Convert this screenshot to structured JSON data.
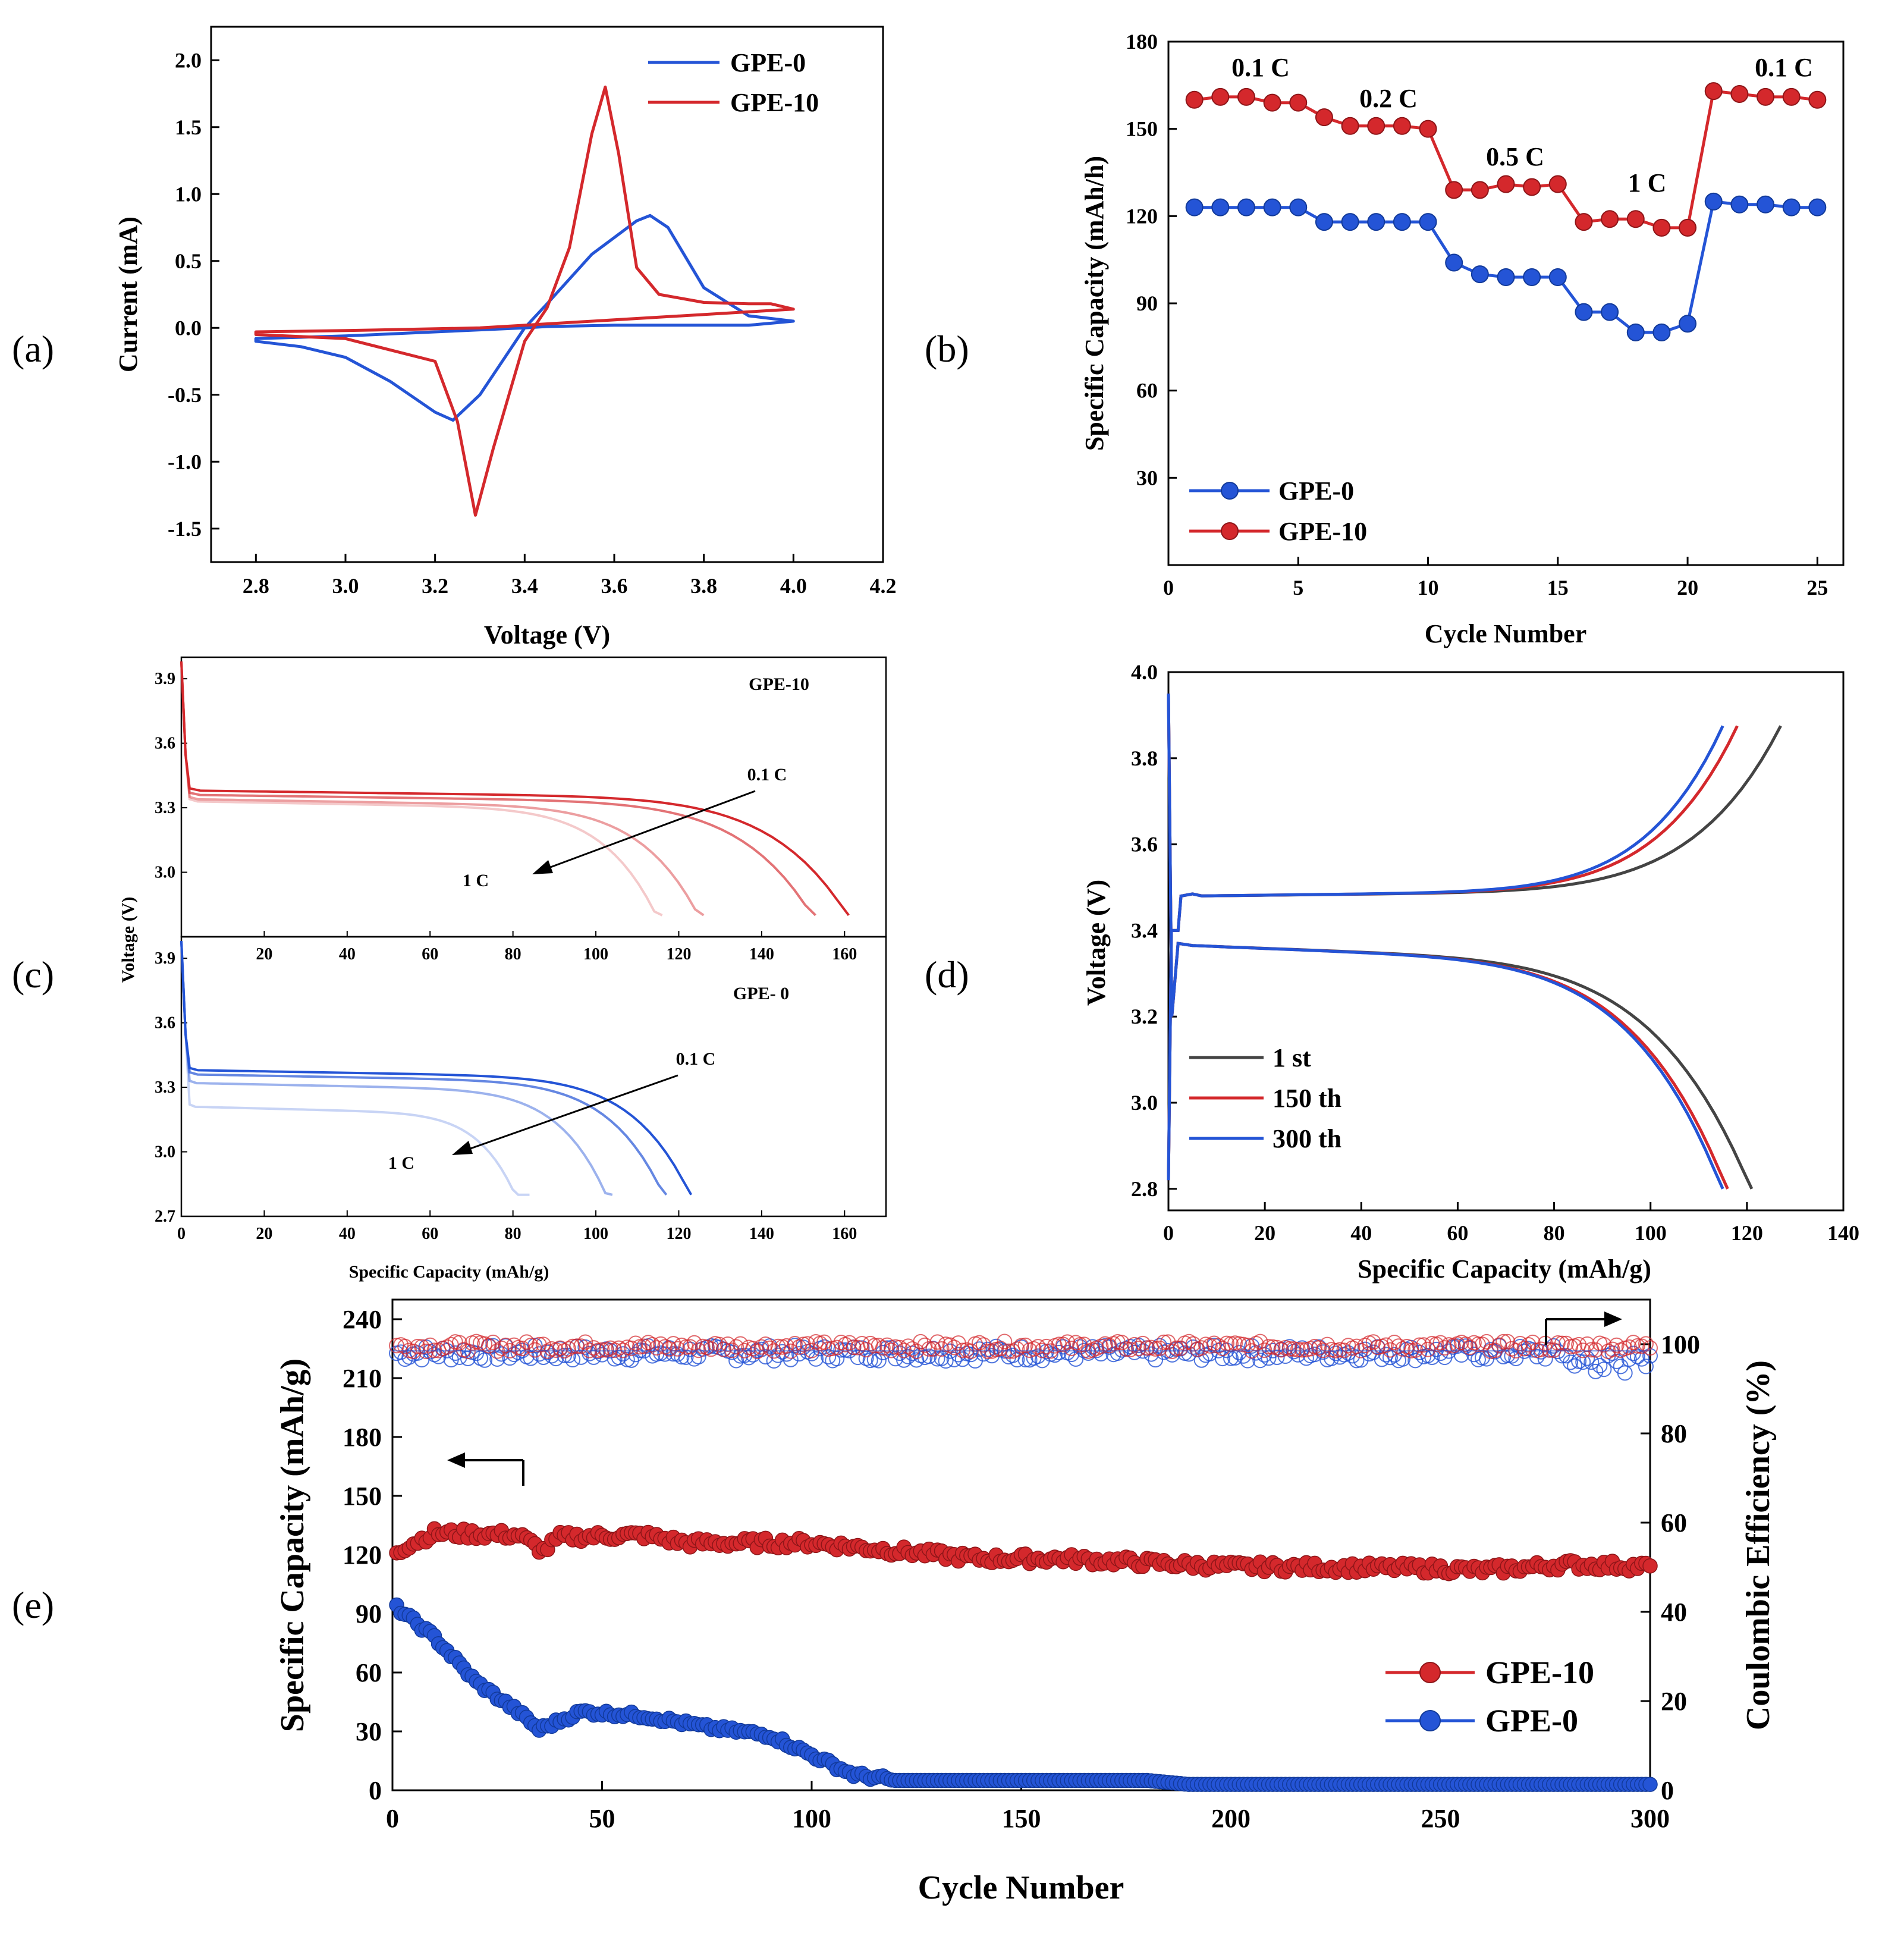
{
  "colors": {
    "blue": "#2454d6",
    "red": "#d4282c",
    "dark": "#444444",
    "edge": "#000000"
  },
  "panels": [
    {
      "id": "a",
      "label": "(a)",
      "type": "line",
      "xlabel": "Voltage (V)",
      "ylabel": "Current (mA)",
      "xlim": [
        2.7,
        4.2
      ],
      "ylim": [
        -1.75,
        2.25
      ],
      "xticks": [
        "2.8",
        "3.0",
        "3.2",
        "3.4",
        "3.6",
        "3.8",
        "4.0",
        "4.2"
      ],
      "yticks": [
        "-1.5",
        "-1.0",
        "-0.5",
        "0.0",
        "0.5",
        "1.0",
        "1.5",
        "2.0"
      ],
      "legend": [
        "GPE-0",
        "GPE-10"
      ],
      "series": [
        {
          "name": "GPE-0",
          "color": "blue",
          "x": [
            2.8,
            2.9,
            3.0,
            3.1,
            3.2,
            3.24,
            3.3,
            3.4,
            3.45,
            3.55,
            3.65,
            3.68,
            3.72,
            3.8,
            3.9,
            4.0,
            3.9,
            3.8,
            3.6,
            3.45,
            3.4,
            3.2,
            3.0,
            2.8
          ],
          "y": [
            -0.1,
            -0.14,
            -0.22,
            -0.4,
            -0.63,
            -0.69,
            -0.5,
            0.0,
            0.18,
            0.55,
            0.8,
            0.84,
            0.75,
            0.3,
            0.09,
            0.05,
            0.02,
            0.02,
            0.02,
            0.01,
            0.0,
            -0.03,
            -0.06,
            -0.08
          ]
        },
        {
          "name": "GPE-10",
          "color": "red",
          "x": [
            2.8,
            3.0,
            3.2,
            3.25,
            3.29,
            3.33,
            3.4,
            3.45,
            3.5,
            3.55,
            3.58,
            3.61,
            3.65,
            3.7,
            3.8,
            3.9,
            3.95,
            4.0,
            3.9,
            3.7,
            3.5,
            3.3,
            3.0,
            2.8
          ],
          "y": [
            -0.05,
            -0.08,
            -0.25,
            -0.7,
            -1.4,
            -0.9,
            -0.1,
            0.15,
            0.6,
            1.45,
            1.8,
            1.3,
            0.45,
            0.25,
            0.19,
            0.18,
            0.18,
            0.14,
            0.12,
            0.08,
            0.04,
            0.0,
            -0.02,
            -0.03
          ]
        }
      ]
    },
    {
      "id": "b",
      "label": "(b)",
      "type": "scatter-line",
      "xlabel": "Cycle Number",
      "ylabel": "Specific Capacity (mAh/h)",
      "xlim": [
        0,
        26
      ],
      "ylim": [
        0,
        180
      ],
      "xticks": [
        "0",
        "5",
        "10",
        "15",
        "20",
        "25"
      ],
      "yticks": [
        "30",
        "60",
        "90",
        "120",
        "150",
        "180"
      ],
      "legend": [
        "GPE-0",
        "GPE-10"
      ],
      "annotations": [
        "0.1 C",
        "0.2 C",
        "0.5 C",
        "1 C",
        "0.1 C"
      ],
      "series": [
        {
          "name": "GPE-10",
          "color": "red",
          "x": [
            1,
            2,
            3,
            4,
            5,
            6,
            7,
            8,
            9,
            10,
            11,
            12,
            13,
            14,
            15,
            16,
            17,
            18,
            19,
            20,
            21,
            22,
            23,
            24,
            25
          ],
          "y": [
            160,
            161,
            161,
            159,
            159,
            154,
            151,
            151,
            151,
            150,
            129,
            129,
            131,
            130,
            131,
            118,
            119,
            119,
            116,
            116,
            163,
            162,
            161,
            161,
            160
          ]
        },
        {
          "name": "GPE-0",
          "color": "blue",
          "x": [
            1,
            2,
            3,
            4,
            5,
            6,
            7,
            8,
            9,
            10,
            11,
            12,
            13,
            14,
            15,
            16,
            17,
            18,
            19,
            20,
            21,
            22,
            23,
            24,
            25
          ],
          "y": [
            123,
            123,
            123,
            123,
            123,
            118,
            118,
            118,
            118,
            118,
            104,
            100,
            99,
            99,
            99,
            87,
            87,
            80,
            80,
            83,
            125,
            124,
            124,
            123,
            123
          ]
        }
      ]
    },
    {
      "id": "c",
      "label": "(c)",
      "type": "line",
      "xlabel": "Specific Capacity (mAh/g)",
      "ylabel": "Voltage (V)",
      "xlim": [
        0,
        170
      ],
      "top": {
        "title": "GPE-10",
        "ylim": [
          2.7,
          4.0
        ],
        "yticks": [
          "3.0",
          "3.3",
          "3.6",
          "3.9"
        ],
        "xticks": [
          "20",
          "40",
          "60",
          "80",
          "100",
          "120",
          "140",
          "160"
        ],
        "ann_high": "0.1 C",
        "ann_low": "1 C",
        "ends": [
          161,
          153,
          126,
          116
        ],
        "plateau": [
          3.38,
          3.36,
          3.34,
          3.33
        ],
        "opacity": [
          1.0,
          0.65,
          0.45,
          0.25
        ]
      },
      "bottom": {
        "title": "GPE- 0",
        "ylim": [
          2.7,
          4.0
        ],
        "yticks": [
          "2.7",
          "3.0",
          "3.3",
          "3.6",
          "3.9"
        ],
        "xticks": [
          "0",
          "20",
          "40",
          "60",
          "80",
          "100",
          "120",
          "140",
          "160"
        ],
        "ann_high": "0.1 C",
        "ann_low": "1 C",
        "ends": [
          123,
          117,
          104,
          84
        ],
        "plateau": [
          3.38,
          3.36,
          3.32,
          3.21
        ],
        "opacity": [
          1.0,
          0.7,
          0.45,
          0.25
        ]
      }
    },
    {
      "id": "d",
      "label": "(d)",
      "type": "line",
      "xlabel": "Specific Capacity (mAh/g)",
      "ylabel": "Voltage (V)",
      "xlim": [
        0,
        140
      ],
      "ylim": [
        2.75,
        4.0
      ],
      "xticks": [
        "0",
        "20",
        "40",
        "60",
        "80",
        "100",
        "120",
        "140"
      ],
      "yticks": [
        "2.8",
        "3.0",
        "3.2",
        "3.4",
        "3.6",
        "3.8",
        "4.0"
      ],
      "legend": [
        "1 st",
        "150 th",
        "300 th"
      ],
      "series": [
        {
          "name": "1 st",
          "color": "dark",
          "charge_end": 127,
          "discharge_end": 121
        },
        {
          "name": "150 th",
          "color": "red",
          "charge_end": 118,
          "discharge_end": 116
        },
        {
          "name": "300 th",
          "color": "blue",
          "charge_end": 115,
          "discharge_end": 115
        }
      ]
    },
    {
      "id": "e",
      "label": "(e)",
      "type": "scatter",
      "xlabel": "Cycle Number",
      "ylabel": "Specific Capacity (mAh/g)",
      "y2label": "Coulombic Efficiency (%)",
      "xlim": [
        0,
        300
      ],
      "ylim": [
        0,
        250
      ],
      "y2lim": [
        0,
        110
      ],
      "xticks": [
        "0",
        "50",
        "100",
        "150",
        "200",
        "250",
        "300"
      ],
      "yticks": [
        "0",
        "30",
        "60",
        "90",
        "120",
        "150",
        "180",
        "210",
        "240"
      ],
      "y2ticks": [
        "0",
        "20",
        "40",
        "60",
        "80",
        "100"
      ],
      "legend": [
        "GPE-10",
        "GPE-0"
      ],
      "capacity_gpe10": [
        [
          1,
          122
        ],
        [
          10,
          131
        ],
        [
          30,
          130
        ],
        [
          36,
          122
        ],
        [
          40,
          129
        ],
        [
          60,
          130
        ],
        [
          70,
          126
        ],
        [
          100,
          126
        ],
        [
          130,
          120
        ],
        [
          140,
          118
        ],
        [
          160,
          118
        ],
        [
          200,
          114
        ],
        [
          250,
          113
        ],
        [
          260,
          112
        ],
        [
          280,
          115
        ],
        [
          300,
          114
        ]
      ],
      "capacity_gpe0": [
        [
          1,
          93
        ],
        [
          10,
          78
        ],
        [
          20,
          55
        ],
        [
          30,
          40
        ],
        [
          35,
          31
        ],
        [
          45,
          40
        ],
        [
          60,
          38
        ],
        [
          75,
          32
        ],
        [
          90,
          28
        ],
        [
          100,
          18
        ],
        [
          110,
          8
        ],
        [
          120,
          5
        ],
        [
          180,
          5
        ],
        [
          190,
          3
        ],
        [
          300,
          3
        ]
      ],
      "ce_gpe10_mean": 99.5,
      "ce_gpe0_mean": 98.0
    }
  ]
}
